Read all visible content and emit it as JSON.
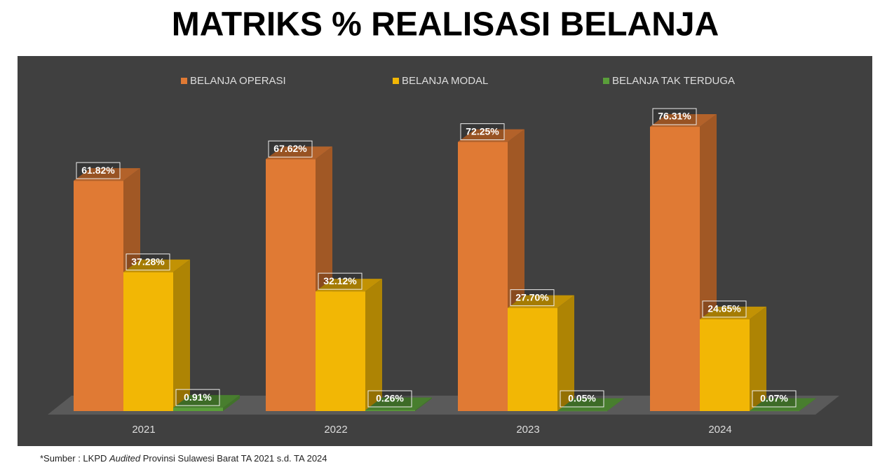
{
  "chart_data": {
    "type": "bar3d",
    "title": "MATRIKS % REALISASI BELANJA",
    "categories": [
      "2021",
      "2022",
      "2023",
      "2024"
    ],
    "series": [
      {
        "name": "BELANJA OPERASI",
        "color": "#E07A34",
        "values": [
          61.82,
          67.62,
          72.25,
          76.31
        ],
        "value_labels": [
          "61.82%",
          "67.62%",
          "72.25%",
          "76.31%"
        ]
      },
      {
        "name": "BELANJA MODAL",
        "color": "#F2B705",
        "values": [
          37.28,
          32.12,
          27.7,
          24.65
        ],
        "value_labels": [
          "37.28%",
          "32.12%",
          "27.70%",
          "24.65%"
        ]
      },
      {
        "name": "BELANJA TAK TERDUGA",
        "color": "#5A9E3A",
        "values": [
          0.91,
          0.26,
          0.05,
          0.07
        ],
        "value_labels": [
          "0.91%",
          "0.26%",
          "0.05%",
          "0.07%"
        ]
      }
    ],
    "legend": "top",
    "footnote": [
      "*Sumber : LKPD ",
      "Audited",
      " Provinsi Sulawesi Barat TA 2021 s.d. TA 2024"
    ]
  }
}
